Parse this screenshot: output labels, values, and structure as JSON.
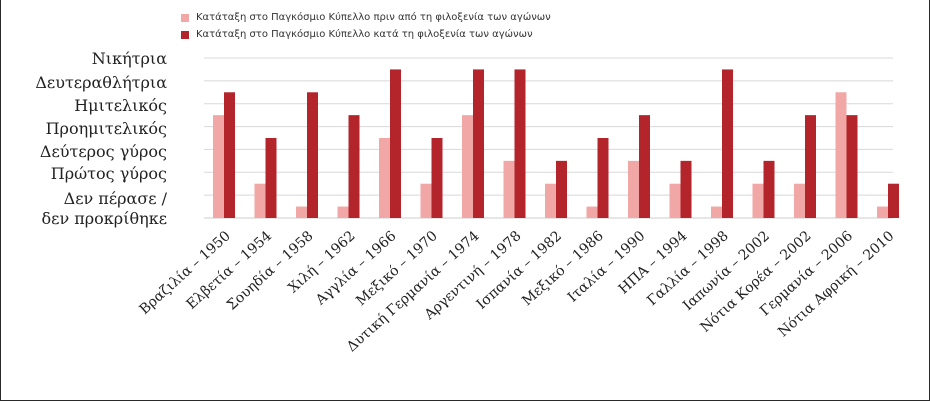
{
  "colors": {
    "before": "#f0a7a5",
    "during": "#b3242b",
    "grid": "#d8d8d8"
  },
  "legend": {
    "before": "Κατάταξη στο Παγκόσμιο Κύπελλο πριν από τη φιλοξενία των αγώνων",
    "during": "Κατάταξη στο Παγκόσμιο Κύπελλο κατά τη φιλοξενία των αγώνων"
  },
  "chart_data": {
    "type": "bar",
    "y_levels": [
      "Δεν πέρασε / δεν προκρίθηκε",
      "Πρώτος γύρος",
      "Δεύτερος γύρος",
      "Προημιτελικός",
      "Ημιτελικός",
      "Δευτεραθλήτρια",
      "Νικήτρια"
    ],
    "categories": [
      "Βραζιλία – 1950",
      "Ελβετία – 1954",
      "Σουηδία – 1958",
      "Χιλή – 1962",
      "Αγγλία – 1966",
      "Μεξικό – 1970",
      "Δυτική Γερμανία – 1974",
      "Αργεντινή – 1978",
      "Ισπανία – 1982",
      "Μεξικό – 1986",
      "Ιταλία – 1990",
      "ΗΠΑ – 1994",
      "Γαλλία – 1998",
      "Ιαπωνία – 2002",
      "Νότια Κορέα – 2002",
      "Γερμανία – 2006",
      "Νότια Αφρική – 2010"
    ],
    "series": [
      {
        "name": "Κατάταξη στο Παγκόσμιο Κύπελλο πριν από τη φιλοξενία των αγώνων",
        "values": [
          4.5,
          1.5,
          0.5,
          0.5,
          3.5,
          1.5,
          4.5,
          2.5,
          1.5,
          0.5,
          2.5,
          1.5,
          0.5,
          1.5,
          1.5,
          5.5,
          0.5
        ]
      },
      {
        "name": "Κατάταξη στο Παγκόσμιο Κύπελλο κατά τη φιλοξενία των αγώνων",
        "values": [
          5.5,
          3.5,
          5.5,
          4.5,
          6.5,
          3.5,
          6.5,
          6.5,
          2.5,
          3.5,
          4.5,
          2.5,
          6.5,
          2.5,
          4.5,
          4.5,
          1.5
        ]
      }
    ],
    "ylim": [
      0,
      7
    ],
    "grid": true,
    "legend_position": "top-center"
  }
}
